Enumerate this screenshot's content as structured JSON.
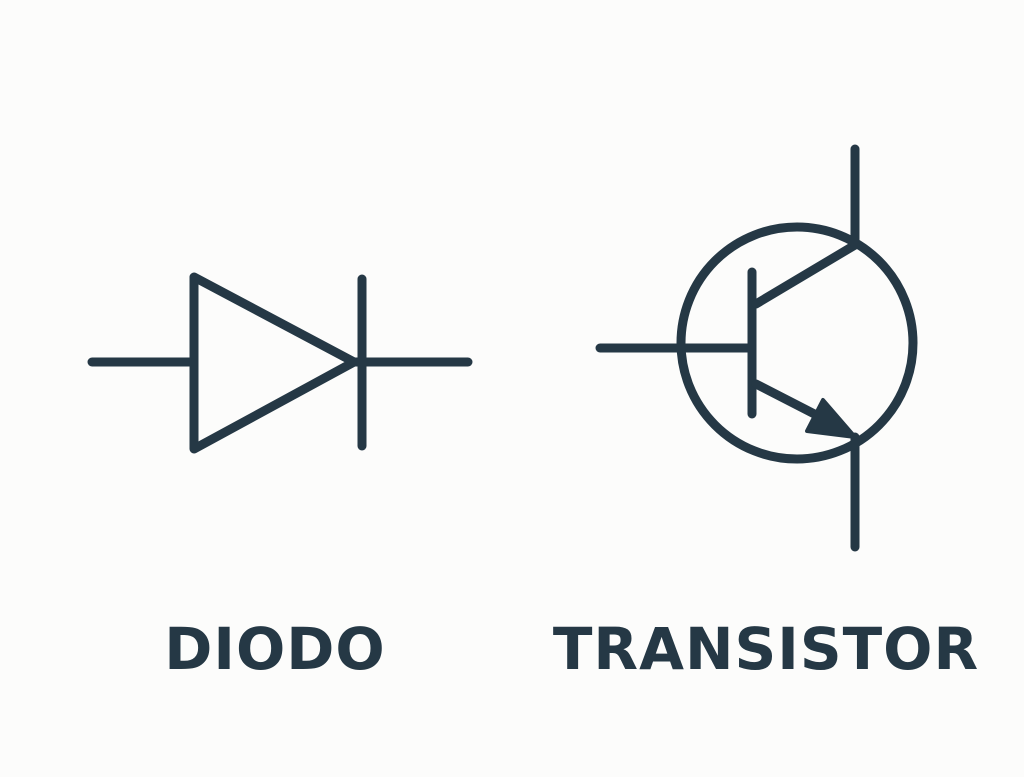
{
  "symbols": {
    "diode": {
      "label": "DIODO",
      "icon": "diode-symbol-icon"
    },
    "transistor": {
      "label": "TRANSISTOR",
      "icon": "npn-transistor-symbol-icon"
    }
  },
  "colors": {
    "stroke": "#253845",
    "background": "#fcfcfb"
  }
}
